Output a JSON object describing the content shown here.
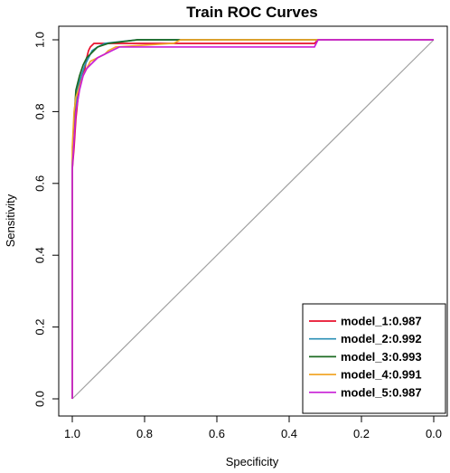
{
  "chart_data": {
    "type": "line",
    "title": "Train ROC Curves",
    "xlabel": "Specificity",
    "ylabel": "Sensitivity",
    "xlim": [
      1.0,
      0.0
    ],
    "ylim": [
      0.0,
      1.0
    ],
    "x_ticks": [
      "1.0",
      "0.8",
      "0.6",
      "0.4",
      "0.2",
      "0.0"
    ],
    "y_ticks": [
      "0.0",
      "0.2",
      "0.4",
      "0.6",
      "0.8",
      "1.0"
    ],
    "x_tick_values": [
      1.0,
      0.8,
      0.6,
      0.4,
      0.2,
      0.0
    ],
    "y_tick_values": [
      0.0,
      0.2,
      0.4,
      0.6,
      0.8,
      1.0
    ],
    "grid": false,
    "legend_position": "bottom-right",
    "reference_line": {
      "from": [
        1.0,
        0.0
      ],
      "to": [
        0.0,
        1.0
      ],
      "color": "#A0A0A0"
    },
    "series": [
      {
        "name": "model_1:0.987",
        "color": "#E8112D",
        "points": [
          [
            1.0,
            0.0
          ],
          [
            1.0,
            0.64
          ],
          [
            0.995,
            0.7
          ],
          [
            0.99,
            0.78
          ],
          [
            0.985,
            0.83
          ],
          [
            0.98,
            0.88
          ],
          [
            0.975,
            0.9
          ],
          [
            0.965,
            0.92
          ],
          [
            0.96,
            0.95
          ],
          [
            0.955,
            0.97
          ],
          [
            0.95,
            0.98
          ],
          [
            0.94,
            0.99
          ],
          [
            0.33,
            0.99
          ],
          [
            0.32,
            1.0
          ],
          [
            0.0,
            1.0
          ]
        ]
      },
      {
        "name": "model_2:0.992",
        "color": "#2A8FB5",
        "points": [
          [
            1.0,
            0.0
          ],
          [
            1.0,
            0.66
          ],
          [
            0.995,
            0.75
          ],
          [
            0.99,
            0.82
          ],
          [
            0.985,
            0.87
          ],
          [
            0.975,
            0.9
          ],
          [
            0.965,
            0.93
          ],
          [
            0.955,
            0.95
          ],
          [
            0.945,
            0.97
          ],
          [
            0.93,
            0.98
          ],
          [
            0.91,
            0.99
          ],
          [
            0.82,
            1.0
          ],
          [
            0.0,
            1.0
          ]
        ]
      },
      {
        "name": "model_3:0.993",
        "color": "#1C6B22",
        "points": [
          [
            1.0,
            0.0
          ],
          [
            1.0,
            0.65
          ],
          [
            0.995,
            0.78
          ],
          [
            0.99,
            0.86
          ],
          [
            0.98,
            0.9
          ],
          [
            0.97,
            0.93
          ],
          [
            0.96,
            0.95
          ],
          [
            0.95,
            0.96
          ],
          [
            0.94,
            0.97
          ],
          [
            0.93,
            0.98
          ],
          [
            0.9,
            0.99
          ],
          [
            0.82,
            1.0
          ],
          [
            0.0,
            1.0
          ]
        ]
      },
      {
        "name": "model_4:0.991",
        "color": "#F2A72B",
        "points": [
          [
            1.0,
            0.0
          ],
          [
            1.0,
            0.7
          ],
          [
            0.995,
            0.8
          ],
          [
            0.99,
            0.84
          ],
          [
            0.98,
            0.87
          ],
          [
            0.97,
            0.9
          ],
          [
            0.96,
            0.92
          ],
          [
            0.95,
            0.94
          ],
          [
            0.93,
            0.95
          ],
          [
            0.91,
            0.96
          ],
          [
            0.9,
            0.97
          ],
          [
            0.88,
            0.98
          ],
          [
            0.72,
            0.99
          ],
          [
            0.7,
            1.0
          ],
          [
            0.0,
            1.0
          ]
        ]
      },
      {
        "name": "model_5:0.987",
        "color": "#C81FD6",
        "points": [
          [
            1.0,
            0.0
          ],
          [
            1.0,
            0.64
          ],
          [
            0.995,
            0.72
          ],
          [
            0.99,
            0.8
          ],
          [
            0.98,
            0.86
          ],
          [
            0.97,
            0.9
          ],
          [
            0.96,
            0.92
          ],
          [
            0.95,
            0.93
          ],
          [
            0.93,
            0.95
          ],
          [
            0.91,
            0.96
          ],
          [
            0.89,
            0.97
          ],
          [
            0.87,
            0.98
          ],
          [
            0.33,
            0.98
          ],
          [
            0.32,
            1.0
          ],
          [
            0.0,
            1.0
          ]
        ]
      }
    ]
  }
}
